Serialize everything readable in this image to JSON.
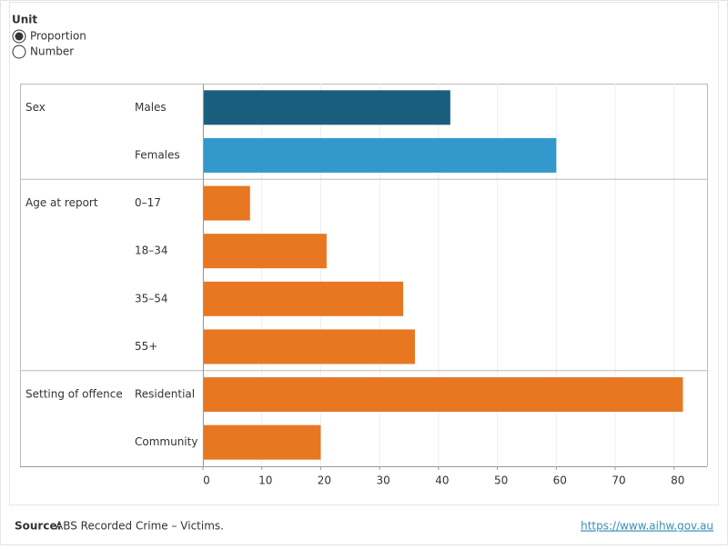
{
  "unit_filter": {
    "label": "Unit",
    "options": [
      "Proportion",
      "Number"
    ],
    "selected": 0
  },
  "chart_data": {
    "type": "bar",
    "orientation": "horizontal",
    "groups": [
      {
        "label": "Sex",
        "categories": [
          "Males",
          "Females"
        ],
        "values": [
          42,
          60
        ],
        "colors": [
          "#1a5e7e",
          "#3399cc"
        ]
      },
      {
        "label": "Age at report",
        "categories": [
          "0–17",
          "18–34",
          "35–54",
          "55+"
        ],
        "values": [
          8,
          21,
          34,
          36
        ],
        "colors": [
          "#e87722",
          "#e87722",
          "#e87722",
          "#e87722"
        ]
      },
      {
        "label": "Setting of offence",
        "categories": [
          "Residential",
          "Community"
        ],
        "values": [
          81.5,
          20
        ],
        "colors": [
          "#e87722",
          "#e87722"
        ]
      }
    ],
    "xlim": [
      0,
      85.6
    ],
    "xticks": [
      0,
      10,
      20,
      30,
      40,
      50,
      60,
      70,
      80
    ],
    "grid": true
  },
  "footer": {
    "source_label": "Source:",
    "source_text": "ABS Recorded Crime – Victims.",
    "url": "https://www.aihw.gov.au"
  }
}
